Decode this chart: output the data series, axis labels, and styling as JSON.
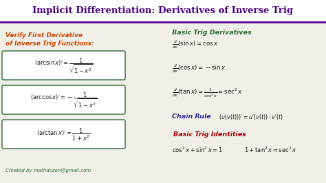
{
  "bg_color": "#f0efe8",
  "header_bg": "#ffffff",
  "header_text": "Implicit Differentiation: Derivatives of Inverse Trig",
  "header_color": "#4b0082",
  "header_line_color": "#5b0090",
  "left_title_color": "#cc4400",
  "box_edge_color": "#2e6b35",
  "box_bg": "#ffffff",
  "right_title1": "Basic Trig Derivatives",
  "right_title1_color": "#2e6b35",
  "chain_rule_color": "#2c2c8e",
  "right_title2": "Basic Trig Identities",
  "right_title2_color": "#aa0000",
  "footer": "Created by mathdozen@gmail.com",
  "footer_color": "#2e6b35",
  "text_color": "#1a1a1a"
}
